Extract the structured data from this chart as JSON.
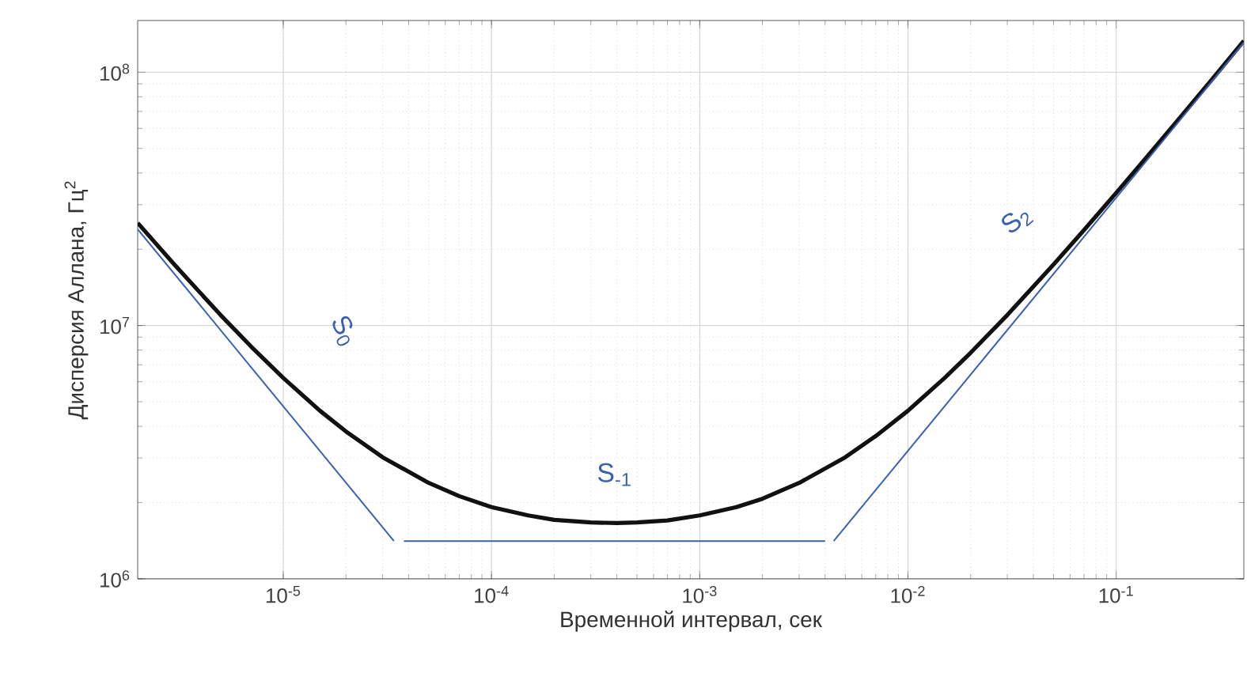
{
  "chart_data": {
    "type": "line",
    "xlabel": "Временной интервал, сек",
    "ylabel": "Дисперсия Аллана, Гц$^{2}$",
    "log": "xy",
    "grid": true,
    "xlim": [
      2e-06,
      0.41
    ],
    "ylim": [
      1000000.0,
      160000000.0
    ],
    "xticks": [
      {
        "value": 1e-05,
        "label": "10$^{-5}$"
      },
      {
        "value": 0.0001,
        "label": "10$^{-4}$"
      },
      {
        "value": 0.001,
        "label": "10$^{-3}$"
      },
      {
        "value": 0.01,
        "label": "10$^{-2}$"
      },
      {
        "value": 0.1,
        "label": "10$^{-1}$"
      }
    ],
    "yticks": [
      {
        "value": 1000000.0,
        "label": "10$^{6}$"
      },
      {
        "value": 10000000.0,
        "label": "10$^{7}$"
      },
      {
        "value": 100000000.0,
        "label": "10$^{8}$"
      }
    ],
    "series": [
      {
        "color": "#111111",
        "x": [
          2e-06,
          3e-06,
          5e-06,
          7e-06,
          1e-05,
          1.5e-05,
          2e-05,
          3e-05,
          5e-05,
          7e-05,
          0.0001,
          0.00015,
          0.0002,
          0.0003,
          0.0004,
          0.0005,
          0.0007,
          0.001,
          0.0015,
          0.002,
          0.003,
          0.005,
          0.007,
          0.01,
          0.015,
          0.02,
          0.03,
          0.05,
          0.07,
          0.1,
          0.15,
          0.2,
          0.3,
          0.41
        ],
        "values": [
          25400000.0,
          17400000.0,
          11000000.0,
          8270000.0,
          6210000.0,
          4610000.0,
          3820000.0,
          3020000.0,
          2390000.0,
          2120000.0,
          1920000.0,
          1780000.0,
          1710000.0,
          1670000.0,
          1660000.0,
          1670000.0,
          1700000.0,
          1780000.0,
          1920000.0,
          2070000.0,
          2390000.0,
          3020000.0,
          3660000.0,
          4610000.0,
          6210000.0,
          7810000.0,
          11000000.0,
          17400000.0,
          23800000.0,
          33400000.0,
          49400000.0,
          65400000.0,
          97400000.0,
          133000000.0
        ]
      },
      {
        "name": "S$_{0}$",
        "color": "#3a5fb5",
        "x": [
          2e-06,
          3.4e-05
        ],
        "values": [
          24000000.0,
          1410000.0
        ]
      },
      {
        "name": "S$_{-1}$",
        "color": "#3a5fb5",
        "x": [
          3.8e-05,
          0.004
        ],
        "values": [
          1410000.0,
          1410000.0
        ]
      },
      {
        "name": "S$_{2}$",
        "color": "#3a5fb5",
        "x": [
          0.0044,
          0.41
        ],
        "values": [
          1410000.0,
          131000000.0
        ]
      }
    ]
  }
}
